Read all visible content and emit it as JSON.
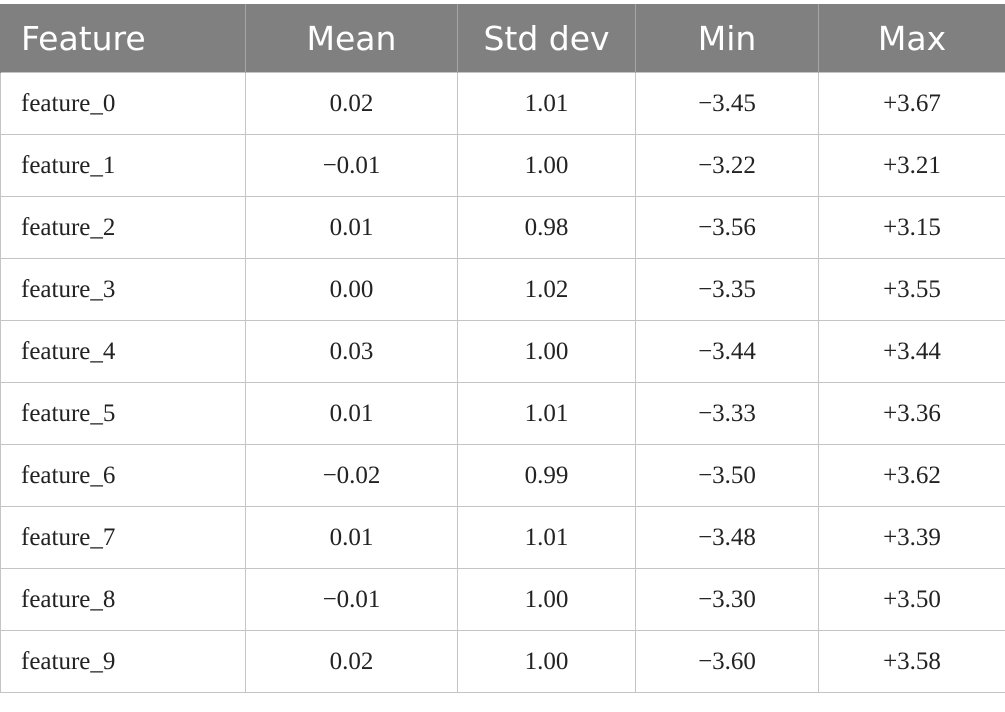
{
  "table": {
    "headers": [
      "Feature",
      "Mean",
      "Std dev",
      "Min",
      "Max"
    ],
    "rows": [
      [
        "feature_0",
        "0.02",
        "1.01",
        "−3.45",
        "+3.67"
      ],
      [
        "feature_1",
        "−0.01",
        "1.00",
        "−3.22",
        "+3.21"
      ],
      [
        "feature_2",
        "0.01",
        "0.98",
        "−3.56",
        "+3.15"
      ],
      [
        "feature_3",
        "0.00",
        "1.02",
        "−3.35",
        "+3.55"
      ],
      [
        "feature_4",
        "0.03",
        "1.00",
        "−3.44",
        "+3.44"
      ],
      [
        "feature_5",
        "0.01",
        "1.01",
        "−3.33",
        "+3.36"
      ],
      [
        "feature_6",
        "−0.02",
        "0.99",
        "−3.50",
        "+3.62"
      ],
      [
        "feature_7",
        "0.01",
        "1.01",
        "−3.48",
        "+3.39"
      ],
      [
        "feature_8",
        "−0.01",
        "1.00",
        "−3.30",
        "+3.50"
      ],
      [
        "feature_9",
        "0.02",
        "1.00",
        "−3.60",
        "+3.58"
      ]
    ]
  }
}
